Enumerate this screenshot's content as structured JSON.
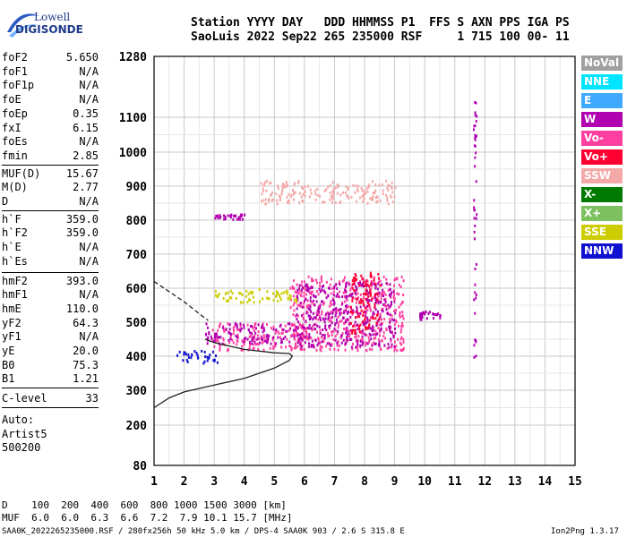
{
  "logo": {
    "line1": "Lowell",
    "line2": "DIGISONDE"
  },
  "header": {
    "line1": "Station YYYY DAY   DDD HHMMSS P1  FFS S AXN PPS IGA PS",
    "line2": "SaoLuis 2022 Sep22 265 235000 RSF     1 715 100 00- 11"
  },
  "params_a": [
    {
      "k": "foF2",
      "v": "5.650"
    },
    {
      "k": "foF1",
      "v": "N/A"
    },
    {
      "k": "foF1p",
      "v": "N/A"
    },
    {
      "k": "foE",
      "v": "N/A"
    },
    {
      "k": "foEp",
      "v": "0.35"
    },
    {
      "k": "fxI",
      "v": "6.15"
    },
    {
      "k": "foEs",
      "v": "N/A"
    },
    {
      "k": "fmin",
      "v": "2.85"
    }
  ],
  "params_b": [
    {
      "k": "MUF(D)",
      "v": "15.67"
    },
    {
      "k": "M(D)",
      "v": "2.77"
    },
    {
      "k": "D",
      "v": "N/A"
    }
  ],
  "params_c": [
    {
      "k": "h`F",
      "v": "359.0"
    },
    {
      "k": "h`F2",
      "v": "359.0"
    },
    {
      "k": "h`E",
      "v": "N/A"
    },
    {
      "k": "h`Es",
      "v": "N/A"
    }
  ],
  "params_d": [
    {
      "k": "hmF2",
      "v": "393.0"
    },
    {
      "k": "hmF1",
      "v": "N/A"
    },
    {
      "k": "hmE",
      "v": "110.0"
    },
    {
      "k": "yF2",
      "v": "64.3"
    },
    {
      "k": "yF1",
      "v": "N/A"
    },
    {
      "k": "yE",
      "v": "20.0"
    },
    {
      "k": "B0",
      "v": "75.3"
    },
    {
      "k": "B1",
      "v": "1.21"
    }
  ],
  "clevel": {
    "k": "C-level",
    "v": "33"
  },
  "auto": [
    "Auto:",
    "Artist5",
    "500200"
  ],
  "footer": {
    "d_row": "D    100  200  400  600  800 1000 1500 3000 [km]",
    "muf_row": "MUF  6.0  6.0  6.3  6.6  7.2  7.9 10.1 15.7 [MHz]",
    "info": "SAA0K_2022265235000.RSF / 280fx256h 50 kHz 5.0 km / DPS-4 SAA0K 903 / 2.6 S 315.8 E",
    "version": "Ion2Png 1.3.17"
  },
  "legend": [
    {
      "label": "NoVal",
      "color": "#a0a0a0"
    },
    {
      "label": "NNE",
      "color": "#00e5ff"
    },
    {
      "label": "E",
      "color": "#3fa9ff"
    },
    {
      "label": "W",
      "color": "#b000b0"
    },
    {
      "label": "Vo-",
      "color": "#ff3fa0"
    },
    {
      "label": "Vo+",
      "color": "#ff0033"
    },
    {
      "label": "SSW",
      "color": "#f4a8a8"
    },
    {
      "label": "X-",
      "color": "#007a00"
    },
    {
      "label": "X+",
      "color": "#7cc060"
    },
    {
      "label": "SSE",
      "color": "#cccc00"
    },
    {
      "label": "NNW",
      "color": "#1010d0"
    }
  ],
  "chart_data": {
    "type": "scatter",
    "xlim": [
      1,
      15
    ],
    "ylim": [
      80,
      1280
    ],
    "xticks": [
      1,
      2,
      3,
      4,
      5,
      6,
      7,
      8,
      9,
      10,
      11,
      12,
      13,
      14,
      15
    ],
    "yticks": [
      80,
      200,
      300,
      400,
      500,
      600,
      700,
      800,
      900,
      1000,
      1100,
      1280
    ],
    "y_scale": "non-linear (ionogram virtual height)",
    "grid": true,
    "echo_clusters": [
      {
        "x_range": [
          2.9,
          6.0
        ],
        "y_range": [
          420,
          500
        ],
        "color": "#ff3fa0"
      },
      {
        "x_range": [
          2.7,
          6.0
        ],
        "y_range": [
          440,
          500
        ],
        "color": "#b000b0"
      },
      {
        "x_range": [
          5.5,
          9.3
        ],
        "y_range": [
          420,
          640
        ],
        "color": "#ff3fa0"
      },
      {
        "x_range": [
          5.7,
          9.0
        ],
        "y_range": [
          430,
          620
        ],
        "color": "#b000b0"
      },
      {
        "x_range": [
          7.5,
          8.5
        ],
        "y_range": [
          470,
          650
        ],
        "color": "#ff0033"
      },
      {
        "x_range": [
          3.0,
          5.8
        ],
        "y_range": [
          560,
          600
        ],
        "color": "#cccc00"
      },
      {
        "x_range": [
          1.7,
          3.2
        ],
        "y_range": [
          380,
          420
        ],
        "color": "#1010d0"
      },
      {
        "x_range": [
          3.0,
          4.0
        ],
        "y_range": [
          805,
          820
        ],
        "color": "#b000b0"
      },
      {
        "x_range": [
          4.5,
          9.0
        ],
        "y_range": [
          850,
          920
        ],
        "color": "#f4a8a8"
      },
      {
        "x_range": [
          9.8,
          10.5
        ],
        "y_range": [
          510,
          535
        ],
        "color": "#b000b0"
      },
      {
        "x_range": [
          11.6,
          11.7
        ],
        "y_range": [
          400,
          1150
        ],
        "color": "#b000b0"
      }
    ],
    "trace_lower": [
      [
        1.0,
        250
      ],
      [
        1.5,
        278
      ],
      [
        2.0,
        295
      ],
      [
        3.0,
        315
      ],
      [
        4.0,
        335
      ],
      [
        5.0,
        365
      ],
      [
        5.5,
        388
      ],
      [
        5.6,
        400
      ],
      [
        5.5,
        408
      ],
      [
        5.0,
        410
      ],
      [
        4.0,
        420
      ],
      [
        3.0,
        440
      ],
      [
        2.7,
        450
      ]
    ],
    "trace_upper": [
      [
        1.0,
        620
      ],
      [
        1.5,
        590
      ],
      [
        2.0,
        560
      ],
      [
        2.5,
        525
      ],
      [
        2.8,
        505
      ]
    ]
  }
}
